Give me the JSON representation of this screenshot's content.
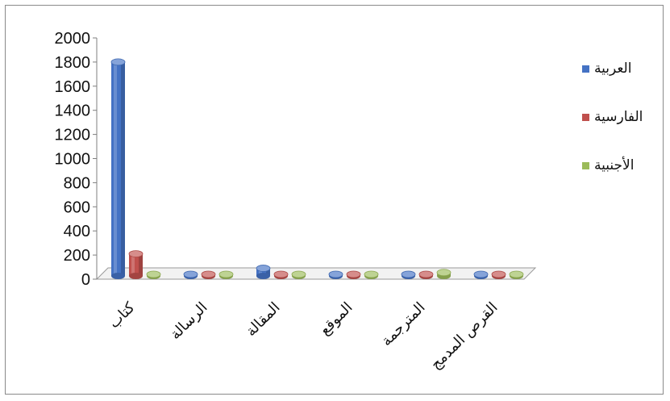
{
  "chart_data": {
    "type": "bar",
    "categories": [
      "كتاب",
      "الرسالة",
      "المقالة",
      "الموقع",
      "المترجمة",
      "القرص المدمج"
    ],
    "series": [
      {
        "name": "العربية",
        "values": [
          1800,
          25,
          90,
          15,
          30,
          5
        ],
        "color": "#4472C4"
      },
      {
        "name": "الفارسية",
        "values": [
          210,
          5,
          35,
          5,
          10,
          5
        ],
        "color": "#C0504D"
      },
      {
        "name": "الأجنبية",
        "values": [
          30,
          5,
          15,
          5,
          55,
          5
        ],
        "color": "#9BBB59"
      }
    ],
    "ylim": [
      0,
      2000
    ],
    "yticks": [
      "0",
      "200",
      "400",
      "600",
      "800",
      "1000",
      "1200",
      "1400",
      "1600",
      "1800",
      "2000"
    ],
    "legend_position": "right",
    "grid": false
  }
}
